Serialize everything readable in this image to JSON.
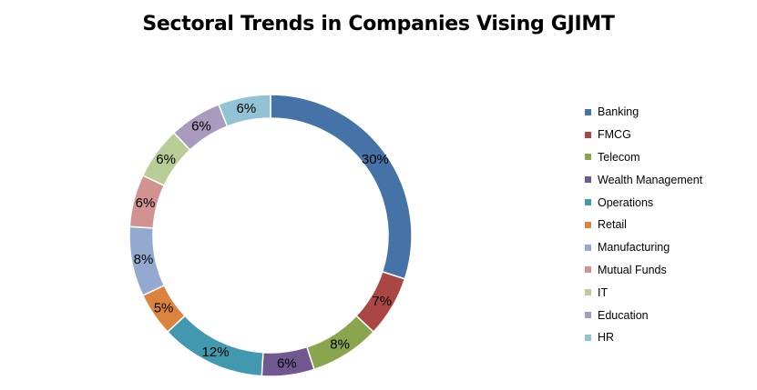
{
  "chart_data": {
    "type": "pie",
    "title": "Sectoral Trends in Companies Vising GJIMT",
    "categories": [
      "Banking",
      "FMCG",
      "Telecom",
      "Wealth Management",
      "Operations",
      "Retail",
      "Manufacturing",
      "Mutual Funds",
      "IT",
      "Education",
      "HR"
    ],
    "values": [
      30,
      7,
      8,
      6,
      12,
      5,
      8,
      6,
      6,
      6,
      6
    ],
    "data_labels": [
      "30%",
      "7%",
      "8%",
      "6%",
      "12%",
      "5%",
      "8%",
      "6%",
      "6%",
      "6%",
      "6%"
    ],
    "colors": [
      "#4572A7",
      "#AA4643",
      "#89A54E",
      "#71588F",
      "#4198AF",
      "#DB843D",
      "#93A9CF",
      "#D19392",
      "#B9CD96",
      "#A99BBD",
      "#92C3D5"
    ],
    "style": "doughnut",
    "legend_position": "right"
  }
}
